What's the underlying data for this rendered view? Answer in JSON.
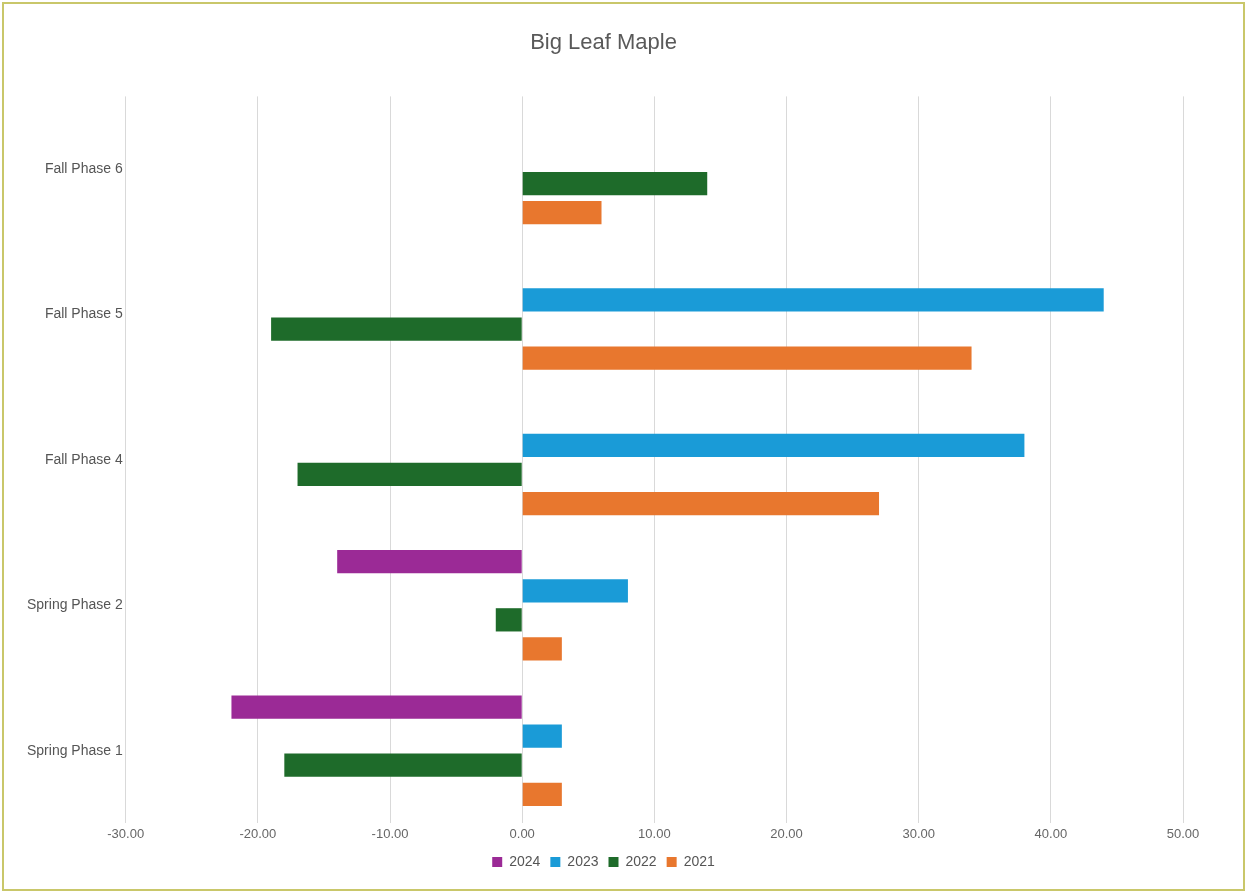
{
  "chart_data": {
    "type": "bar",
    "orientation": "horizontal",
    "title": "Big Leaf Maple",
    "categories": [
      "Fall Phase 6",
      "Fall Phase 5",
      "Fall Phase 4",
      "Spring Phase 2",
      "Spring Phase 1"
    ],
    "series": [
      {
        "name": "2024",
        "color": "#9b2a96",
        "values": [
          null,
          null,
          null,
          -14,
          -22
        ]
      },
      {
        "name": "2023",
        "color": "#1a9bd7",
        "values": [
          null,
          44,
          38,
          8,
          3
        ]
      },
      {
        "name": "2022",
        "color": "#1e6b2a",
        "values": [
          14,
          -19,
          -17,
          -2,
          -18
        ]
      },
      {
        "name": "2021",
        "color": "#e8772e",
        "values": [
          6,
          34,
          27,
          3,
          3
        ]
      }
    ],
    "xlim": [
      -30,
      50
    ],
    "xticks": [
      {
        "value": -30,
        "label": "-30.00"
      },
      {
        "value": -20,
        "label": "-20.00"
      },
      {
        "value": -10,
        "label": "-10.00"
      },
      {
        "value": 0,
        "label": "0.00"
      },
      {
        "value": 10,
        "label": "10.00"
      },
      {
        "value": 20,
        "label": "20.00"
      },
      {
        "value": 30,
        "label": "30.00"
      },
      {
        "value": 40,
        "label": "40.00"
      },
      {
        "value": 50,
        "label": "50.00"
      }
    ],
    "grid": "x",
    "legend": "bottom"
  }
}
